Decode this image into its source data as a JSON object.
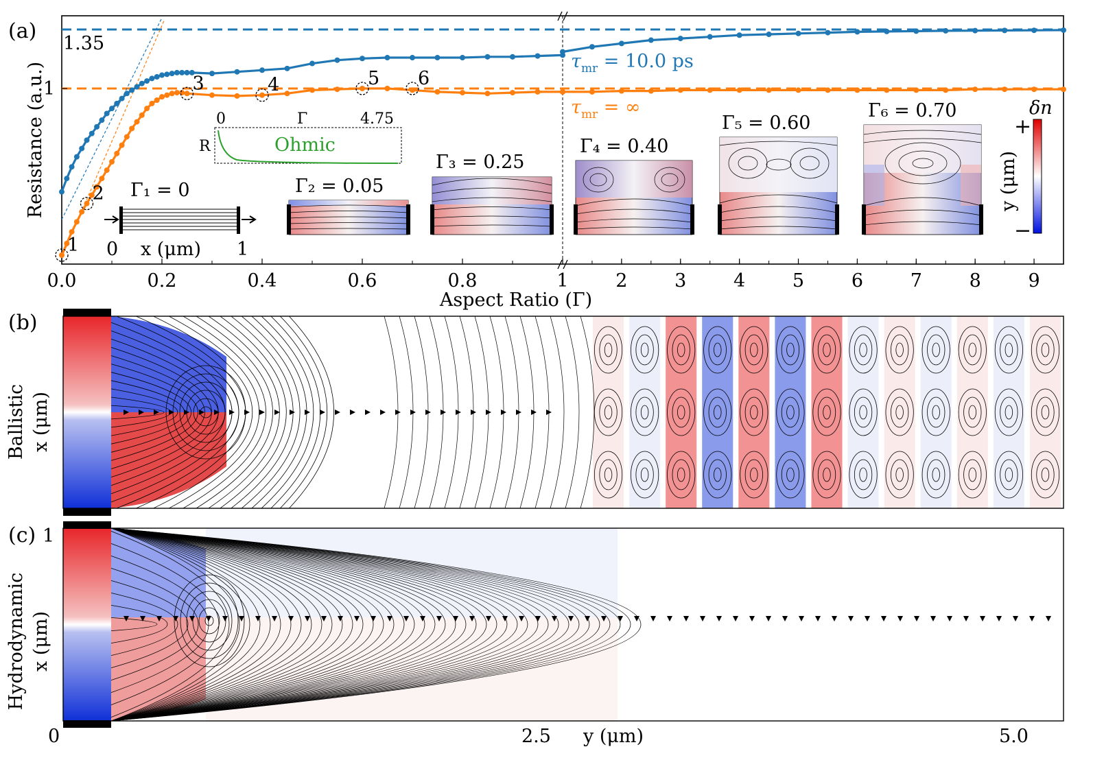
{
  "chart_data": [
    {
      "type": "line",
      "panel": "(a)",
      "xlabel": "Aspect Ratio (Γ)",
      "ylabel": "Resistance (a.u.)",
      "x_ticks_left": [
        "0.0",
        "0.2",
        "0.4",
        "0.6",
        "0.8",
        "1"
      ],
      "x_ticks_right": [
        "2",
        "3",
        "4",
        "5",
        "6",
        "7",
        "8",
        "9"
      ],
      "y_ticks": [
        "1"
      ],
      "reference_lines": [
        {
          "name": "blue-dashed",
          "value": 1.35,
          "label": "1.35"
        },
        {
          "name": "orange-dashed",
          "value": 1.0,
          "label": ""
        }
      ],
      "series": [
        {
          "name": "τmr = 10.0 ps",
          "color": "#1f77b4",
          "x": [
            0.0,
            0.01,
            0.02,
            0.03,
            0.04,
            0.05,
            0.06,
            0.07,
            0.08,
            0.09,
            0.1,
            0.11,
            0.12,
            0.13,
            0.14,
            0.15,
            0.16,
            0.17,
            0.18,
            0.19,
            0.2,
            0.21,
            0.22,
            0.23,
            0.24,
            0.25,
            0.26,
            0.3,
            0.35,
            0.4,
            0.45,
            0.5,
            0.55,
            0.6,
            0.65,
            0.7,
            0.75,
            0.8,
            0.85,
            0.9,
            0.95,
            1.0
          ],
          "y": [
            0.38,
            0.46,
            0.53,
            0.59,
            0.64,
            0.69,
            0.73,
            0.77,
            0.81,
            0.85,
            0.88,
            0.91,
            0.94,
            0.97,
            0.99,
            1.01,
            1.03,
            1.045,
            1.06,
            1.07,
            1.08,
            1.085,
            1.09,
            1.095,
            1.095,
            1.095,
            1.095,
            1.09,
            1.1,
            1.11,
            1.12,
            1.15,
            1.17,
            1.18,
            1.185,
            1.185,
            1.185,
            1.185,
            1.19,
            1.19,
            1.195,
            1.2
          ],
          "x_right": [
            1,
            1.5,
            2,
            2.5,
            3,
            3.5,
            4,
            4.5,
            5,
            5.5,
            6,
            6.5,
            7,
            7.5,
            8,
            8.5,
            9,
            9.5
          ],
          "y_right": [
            1.22,
            1.25,
            1.27,
            1.29,
            1.3,
            1.31,
            1.32,
            1.325,
            1.33,
            1.335,
            1.34,
            1.342,
            1.344,
            1.346,
            1.347,
            1.348,
            1.349,
            1.35
          ]
        },
        {
          "name": "τmr = ∞",
          "color": "#ff7f0e",
          "x": [
            0.0,
            0.01,
            0.02,
            0.03,
            0.04,
            0.05,
            0.06,
            0.07,
            0.08,
            0.09,
            0.1,
            0.11,
            0.12,
            0.13,
            0.14,
            0.15,
            0.16,
            0.17,
            0.18,
            0.19,
            0.2,
            0.21,
            0.22,
            0.23,
            0.24,
            0.25,
            0.3,
            0.35,
            0.4,
            0.45,
            0.5,
            0.55,
            0.6,
            0.65,
            0.7,
            0.75,
            0.8,
            0.85,
            0.9,
            0.95,
            1.0
          ],
          "y": [
            0.0,
            0.07,
            0.14,
            0.2,
            0.26,
            0.31,
            0.36,
            0.41,
            0.46,
            0.51,
            0.56,
            0.61,
            0.66,
            0.71,
            0.76,
            0.8,
            0.84,
            0.88,
            0.91,
            0.93,
            0.95,
            0.96,
            0.97,
            0.975,
            0.975,
            0.97,
            0.96,
            0.955,
            0.96,
            0.97,
            0.99,
            0.995,
            1.0,
            1.0,
            0.99,
            0.98,
            0.975,
            0.97,
            0.975,
            0.98,
            0.98
          ],
          "x_right": [
            1,
            1.5,
            2,
            2.5,
            3,
            3.5,
            4,
            4.5,
            5,
            5.5,
            6,
            6.5,
            7,
            7.5,
            8,
            8.5,
            9,
            9.5
          ],
          "y_right": [
            0.98,
            0.98,
            0.985,
            0.985,
            0.99,
            0.99,
            0.99,
            0.99,
            0.99,
            0.99,
            0.99,
            0.99,
            0.99,
            0.99,
            0.995,
            0.995,
            0.995,
            0.995
          ]
        }
      ],
      "series_labels": [
        {
          "name": "tau-blue",
          "text": "τ",
          "sub": "mr",
          "rest": " = 10.0 ps"
        },
        {
          "name": "tau-orange",
          "text": "τ",
          "sub": "mr",
          "rest": " = ∞"
        }
      ],
      "point_labels": [
        "1",
        "2",
        "3",
        "4",
        "5",
        "6"
      ],
      "point_x": [
        0.0,
        0.05,
        0.25,
        0.4,
        0.6,
        0.7
      ],
      "point_y": [
        0.0,
        0.31,
        0.97,
        0.96,
        1.0,
        1.0
      ],
      "insets": [
        {
          "label": "Γ₁ = 0",
          "gamma": 0.0
        },
        {
          "label": "Γ₂ = 0.05",
          "gamma": 0.05
        },
        {
          "label": "Γ₃ = 0.25",
          "gamma": 0.25
        },
        {
          "label": "Γ₄ = 0.40",
          "gamma": 0.4
        },
        {
          "label": "Γ₅ = 0.60",
          "gamma": 0.6
        },
        {
          "label": "Γ₆ = 0.70",
          "gamma": 0.7
        }
      ],
      "inset1_axis": {
        "left": "0",
        "mid": "x (μm)",
        "right": "1"
      },
      "ohmic_inset": {
        "tick_left": "0",
        "tick_mid": "Γ",
        "tick_right": "4.75",
        "ylabel": "R",
        "label": "Ohmic",
        "color": "#2ca02c"
      },
      "colorbar": {
        "title": "δn",
        "plus": "+",
        "minus": "−",
        "label": "y (μm)"
      }
    },
    {
      "type": "heatmap",
      "panel": "(b)",
      "ylabel_top": "Ballistic",
      "ylabel_bottom": "x (μm)",
      "vortex_columns": 13
    },
    {
      "type": "heatmap",
      "panel": "(c)",
      "ylabel_top": "Hydrodynamic",
      "ylabel_bottom": "x (μm)",
      "y_ticks": [
        "1"
      ],
      "x_ticks": [
        "0",
        "2.5",
        "5.0"
      ],
      "xlabel": "y (μm)"
    }
  ],
  "colors": {
    "blue": "#1f77b4",
    "orange": "#ff7f0e",
    "green": "#2ca02c",
    "red": "#e8262a",
    "cmap_blue": "#1030d8"
  }
}
